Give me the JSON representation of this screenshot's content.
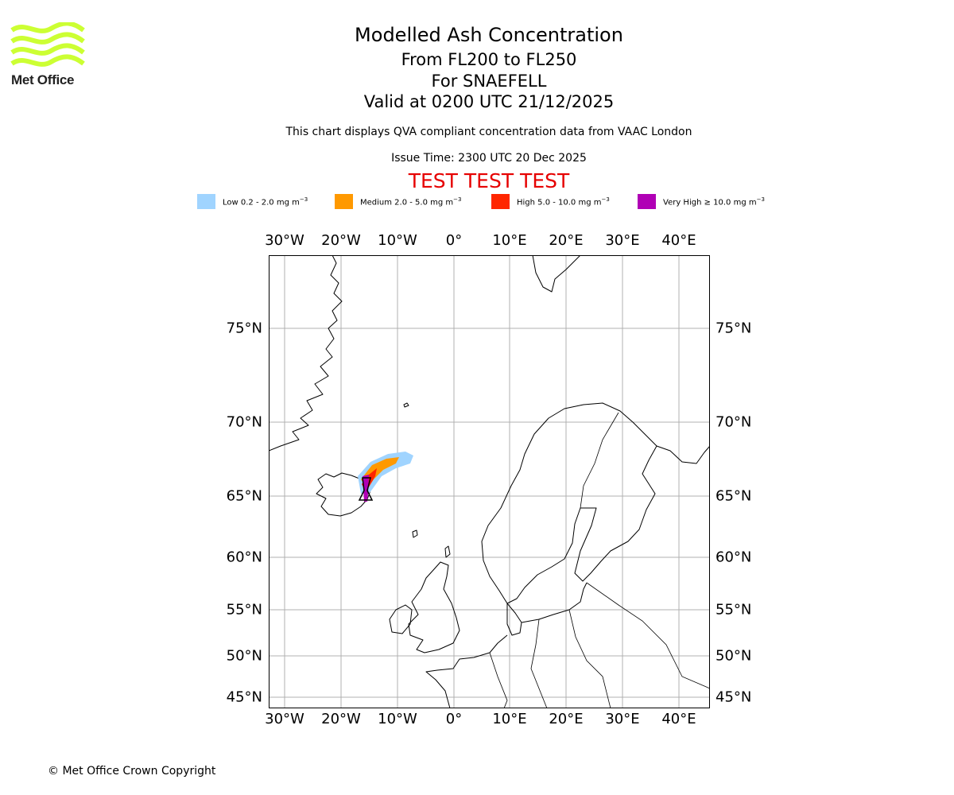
{
  "brand": {
    "name": "Met Office",
    "logo_color": "#ccff33"
  },
  "header": {
    "title": "Modelled Ash Concentration",
    "level_range": "From FL200 to FL250",
    "volcano": "For SNAEFELL",
    "valid_time": "Valid at 0200 UTC 21/12/2025",
    "description": "This chart displays QVA compliant concentration data from VAAC London",
    "issue_time": "Issue Time: 2300 UTC 20 Dec 2025",
    "test_banner": "TEST TEST TEST",
    "test_banner_color": "#e60000"
  },
  "legend": [
    {
      "label": "Low 0.2 - 2.0 mg m",
      "unit_exp": "−3",
      "color": "#a0d4ff"
    },
    {
      "label": "Medium 2.0 - 5.0 mg m",
      "unit_exp": "−3",
      "color": "#ff9900"
    },
    {
      "label": "High 5.0 - 10.0 mg m",
      "unit_exp": "−3",
      "color": "#ff2600"
    },
    {
      "label": "Very High ≥ 10.0 mg m",
      "unit_exp": "−3",
      "color": "#b000b5"
    }
  ],
  "map": {
    "lon_labels": [
      "30°W",
      "20°W",
      "10°W",
      "0°",
      "10°E",
      "20°E",
      "30°E",
      "40°E"
    ],
    "lon_values": [
      -30,
      -20,
      -10,
      0,
      10,
      20,
      30,
      40
    ],
    "lat_labels": [
      "75°N",
      "70°N",
      "65°N",
      "60°N",
      "55°N",
      "50°N",
      "45°N"
    ],
    "lat_values": [
      75,
      70,
      65,
      60,
      55,
      50,
      45
    ],
    "extent": {
      "lon_min": -33,
      "lon_max": 45.3,
      "lat_min": 44.5,
      "lat_max": 78.5
    },
    "ash_source": {
      "name": "SNAEFELL",
      "lon": -15.5,
      "lat": 64.8
    }
  },
  "footer": {
    "copyright": "© Met Office Crown Copyright"
  }
}
